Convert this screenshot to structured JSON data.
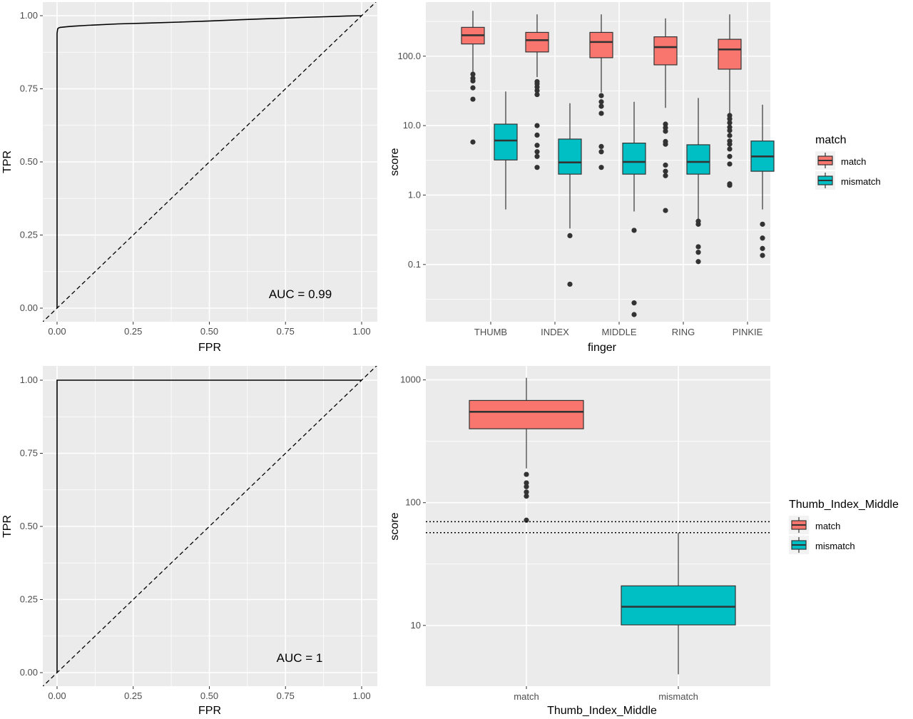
{
  "chart_data": [
    {
      "type": "line",
      "xlabel": "FPR",
      "ylabel": "TPR",
      "xlim": [
        0,
        1
      ],
      "ylim": [
        0,
        1
      ],
      "grid": true,
      "xticks": [
        "0.00",
        "0.25",
        "0.50",
        "0.75",
        "1.00"
      ],
      "yticks": [
        "0.00",
        "0.25",
        "0.50",
        "0.75",
        "1.00"
      ],
      "annotation": "AUC = 0.99",
      "series": [
        {
          "style": "solid",
          "x": [
            0.0,
            0.0,
            0.0,
            0.002,
            0.005,
            0.01,
            0.03,
            0.05,
            0.1,
            0.2,
            0.3,
            0.4,
            0.5,
            0.6,
            0.7,
            0.8,
            0.9,
            0.95,
            1.0
          ],
          "y": [
            0.0,
            0.9,
            0.94,
            0.955,
            0.958,
            0.96,
            0.962,
            0.964,
            0.967,
            0.972,
            0.975,
            0.978,
            0.982,
            0.986,
            0.99,
            0.994,
            0.997,
            0.999,
            1.0
          ]
        },
        {
          "style": "dashed",
          "x": [
            0,
            1
          ],
          "y": [
            0,
            1
          ]
        }
      ]
    },
    {
      "type": "boxplot",
      "xlabel": "finger",
      "ylabel": "score",
      "yscale": "log",
      "ylim": [
        0.015,
        600
      ],
      "grid": true,
      "categories": [
        "THUMB",
        "INDEX",
        "MIDDLE",
        "RING",
        "PINKIE"
      ],
      "yticks": [
        "0.1",
        "1.0",
        "10.0",
        "100.0"
      ],
      "legend": {
        "title": "match",
        "position": "right",
        "entries": [
          "match",
          "mismatch"
        ]
      },
      "series": [
        {
          "color": "#f8766d",
          "boxes": [
            {
              "min": 60,
              "q1": 150,
              "median": 200,
              "q3": 260,
              "max": 450,
              "outliers": [
                55,
                48,
                44,
                35,
                24,
                5.8
              ]
            },
            {
              "min": 50,
              "q1": 115,
              "median": 170,
              "q3": 220,
              "max": 400,
              "outliers": [
                43,
                40,
                36,
                32,
                28,
                10,
                7.3,
                5.2,
                4.2,
                3.6,
                2.5
              ]
            },
            {
              "min": 30,
              "q1": 95,
              "median": 160,
              "q3": 220,
              "max": 400,
              "outliers": [
                27,
                22,
                19,
                15,
                5,
                4.2,
                2.5
              ]
            },
            {
              "min": 18,
              "q1": 75,
              "median": 135,
              "q3": 190,
              "max": 350,
              "outliers": [
                10.5,
                9.3,
                8.3,
                5.9,
                5.4,
                2.7,
                2.2,
                1.9,
                0.6
              ]
            },
            {
              "min": 15,
              "q1": 65,
              "median": 125,
              "q3": 175,
              "max": 400,
              "outliers": [
                14,
                12.5,
                11,
                9.5,
                8.5,
                7.2,
                6.0,
                5.4,
                4.6,
                3.6,
                2.8,
                1.45,
                1.38
              ]
            }
          ]
        },
        {
          "color": "#00bfc4",
          "boxes": [
            {
              "min": 0.62,
              "q1": 3.2,
              "median": 6.1,
              "q3": 10.5,
              "max": 31,
              "outliers": []
            },
            {
              "min": 0.33,
              "q1": 2.0,
              "median": 2.95,
              "q3": 6.4,
              "max": 21,
              "outliers": [
                0.26,
                0.052
              ]
            },
            {
              "min": 0.58,
              "q1": 2.0,
              "median": 3.0,
              "q3": 5.6,
              "max": 22,
              "outliers": [
                0.31,
                0.028,
                0.019
              ]
            },
            {
              "min": 0.45,
              "q1": 2.0,
              "median": 3.0,
              "q3": 5.3,
              "max": 25,
              "outliers": [
                0.42,
                0.38,
                0.18,
                0.15,
                0.11
              ]
            },
            {
              "min": 0.62,
              "q1": 2.2,
              "median": 3.6,
              "q3": 6.0,
              "max": 20,
              "outliers": [
                0.38,
                0.24,
                0.17,
                0.135
              ]
            }
          ]
        }
      ]
    },
    {
      "type": "line",
      "xlabel": "FPR",
      "ylabel": "TPR",
      "xlim": [
        0,
        1
      ],
      "ylim": [
        0,
        1
      ],
      "grid": true,
      "xticks": [
        "0.00",
        "0.25",
        "0.50",
        "0.75",
        "1.00"
      ],
      "yticks": [
        "0.00",
        "0.25",
        "0.50",
        "0.75",
        "1.00"
      ],
      "annotation": "AUC = 1",
      "series": [
        {
          "style": "solid",
          "x": [
            0,
            0,
            1
          ],
          "y": [
            0,
            1,
            1
          ]
        },
        {
          "style": "dashed",
          "x": [
            0,
            1
          ],
          "y": [
            0,
            1
          ]
        }
      ]
    },
    {
      "type": "boxplot",
      "xlabel": "Thumb_Index_Middle",
      "ylabel": "score",
      "yscale": "log",
      "ylim": [
        3.2,
        1300
      ],
      "grid": true,
      "categories": [
        "match",
        "mismatch"
      ],
      "yticks": [
        "10",
        "100",
        "1000"
      ],
      "legend": {
        "title": "Thumb_Index_Middle",
        "position": "right",
        "entries": [
          "match",
          "mismatch"
        ]
      },
      "hlines": [
        70,
        57
      ],
      "boxes": [
        {
          "color": "#f8766d",
          "min": 190,
          "q1": 400,
          "median": 550,
          "q3": 680,
          "max": 1040,
          "outliers": [
            170,
            145,
            135,
            122,
            113,
            72
          ]
        },
        {
          "color": "#00bfc4",
          "min": 4,
          "q1": 10.1,
          "median": 14.2,
          "q3": 21,
          "max": 57,
          "outliers": []
        }
      ]
    }
  ]
}
